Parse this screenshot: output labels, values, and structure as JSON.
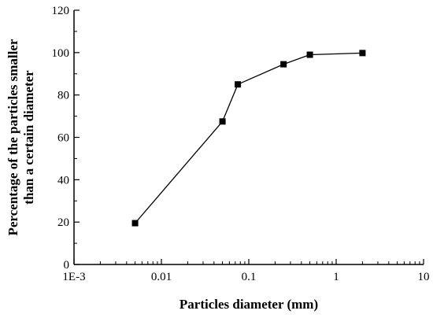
{
  "chart_data": {
    "type": "line",
    "title": "",
    "xlabel": "Particles diameter (mm)",
    "ylabel_lines": [
      "Percentage of the particles smaller",
      "than a certain diameter"
    ],
    "x_scale": "log",
    "xlim": [
      0.001,
      10
    ],
    "ylim": [
      0,
      120
    ],
    "x_ticks": [
      0.001,
      0.01,
      0.1,
      1,
      10
    ],
    "x_tick_labels": [
      "1E-3",
      "0.01",
      "0.1",
      "1",
      "10"
    ],
    "y_ticks": [
      0,
      20,
      40,
      60,
      80,
      100,
      120
    ],
    "y_tick_labels": [
      "0",
      "20",
      "40",
      "60",
      "80",
      "100",
      "120"
    ],
    "grid": false,
    "marker": "square",
    "series": [
      {
        "x": [
          0.005,
          0.05,
          0.075,
          0.25,
          0.5,
          2
        ],
        "y": [
          19.5,
          67.5,
          85,
          94.5,
          99,
          99.8
        ]
      }
    ]
  }
}
